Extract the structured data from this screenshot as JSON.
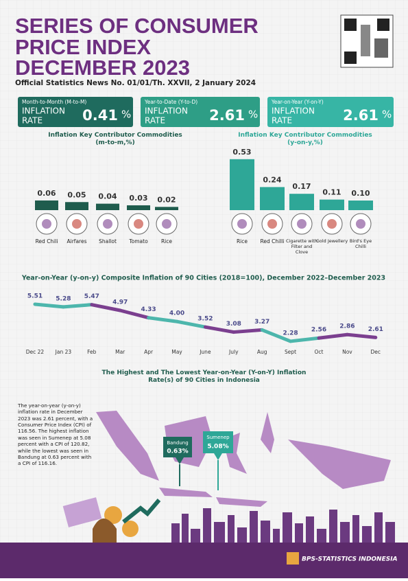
{
  "header": {
    "title_lines": [
      "SERIES OF CONSUMER",
      "PRICE INDEX",
      "DECEMBER 2023"
    ],
    "subtitle": "Official Statistics News No. 01/01/Th. XXVII, 2 January 2024"
  },
  "stats": [
    {
      "period": "Month-to-Month (M-to-M)",
      "label_lines": [
        "INFLATION",
        "RATE"
      ],
      "value": "0.41",
      "unit": "%"
    },
    {
      "period": "Year-to-Date (Y-to-D)",
      "label_lines": [
        "INFLATION",
        "RATE"
      ],
      "value": "2.61",
      "unit": "%"
    },
    {
      "period": "Year-on-Year (Y-on-Y)",
      "label_lines": [
        "INFLATION",
        "RATE"
      ],
      "value": "2.61",
      "unit": "%"
    }
  ],
  "chart_data": [
    {
      "type": "bar",
      "title": "Inflation Key Contributor Commodities (m-to-m,%)",
      "color": "#1f5c4d",
      "categories": [
        "Red Chili",
        "Airfares",
        "Shallot",
        "Tomato",
        "Rice"
      ],
      "values": [
        0.06,
        0.05,
        0.04,
        0.03,
        0.02
      ]
    },
    {
      "type": "bar",
      "title": "Inflation Key Contributor Commodities (y-on-y,%)",
      "color": "#2ea797",
      "categories": [
        "Rice",
        "Red Chilli",
        "Cigarette with Filter and Clove",
        "Gold Jewellery",
        "Bird's Eye Chilli"
      ],
      "values": [
        0.53,
        0.24,
        0.17,
        0.11,
        0.1
      ],
      "value_labels": [
        "0.53",
        "0.24",
        "0.17",
        "0.11",
        "0.10"
      ]
    },
    {
      "type": "line",
      "title": "Year-on-Year (y-on-y) Composite Inflation of 90 Cities (2018=100), December 2022–December 2023",
      "colors": [
        "#4db6ac",
        "#7b3f8f"
      ],
      "categories": [
        "Dec 22",
        "Jan 23",
        "Feb",
        "Mar",
        "Apr",
        "May",
        "June",
        "July",
        "Aug",
        "Sept",
        "Oct",
        "Nov",
        "Dec"
      ],
      "values": [
        5.51,
        5.28,
        5.47,
        4.97,
        4.33,
        4.0,
        3.52,
        3.08,
        3.27,
        2.28,
        2.56,
        2.86,
        2.61
      ],
      "value_labels": [
        "5.51",
        "5.28",
        "5.47",
        "4.97",
        "4.33",
        "4.00",
        "3.52",
        "3.08",
        "3.27",
        "2.28",
        "2.56",
        "2.86",
        "2.61"
      ]
    }
  ],
  "map": {
    "title": "The Highest and The Lowest Year-on-Year (Y-on-Y) Inflation Rate(s) of 90 Cities in Indonesia",
    "paragraph": "The year-on-year (y-on-y) inflation rate in December 2023 was 2.61 percent, with a Consumer Price Index (CPI) of 116.56. The highest inflation was seen in Sumenep at 5.08 percent with a CPI of 120.82, while the lowest was seen in Bandung at 0.63 percent with a CPI of 116.16.",
    "callouts": [
      {
        "city": "Bandung",
        "rate": "0.63%"
      },
      {
        "city": "Sumenep",
        "rate": "5.08%"
      }
    ]
  },
  "footer": {
    "org": "BPS-STATISTICS INDONESIA"
  }
}
